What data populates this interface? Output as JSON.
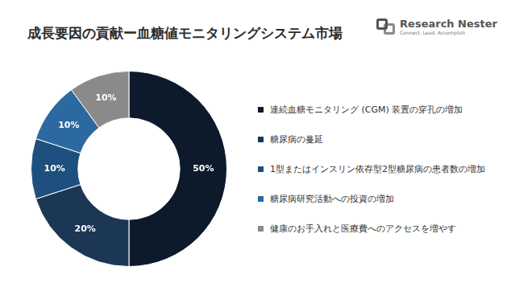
{
  "logo": {
    "name": "Research Nester",
    "tagline": "Connect. Lead. Accomplish"
  },
  "chart_data": {
    "type": "doughnut",
    "title": "成長要因の貢献ー血糖値モニタリングシステム市場",
    "categories": [
      "連続血糖モニタリング (CGM) 装置の穿孔の増加",
      "糖尿病の蔓延",
      "1型またはインスリン依存型2型糖尿病の患者数の増加",
      "糖尿病研究活動への投資の増加",
      "健康のお手入れと医療費へのアクセスを増やす"
    ],
    "values": [
      50,
      20,
      10,
      10,
      10
    ],
    "value_labels": [
      "50%",
      "20%",
      "10%",
      "10%",
      "10%"
    ],
    "colors": [
      "#0c1a2c",
      "#1c3655",
      "#1f4f7e",
      "#2c69a0",
      "#8a8a8a"
    ],
    "data_labels": true,
    "legend": "right"
  }
}
